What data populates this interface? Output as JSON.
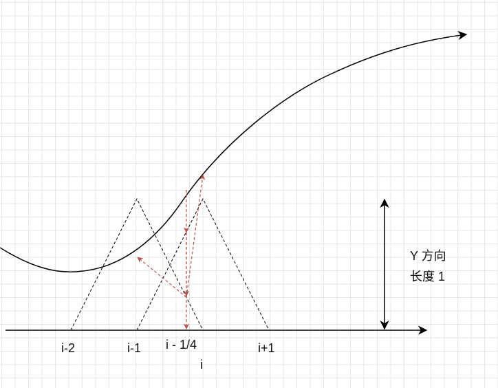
{
  "labels": {
    "i_minus_2": "i-2",
    "i_minus_1": "i-1",
    "i_minus_quarter": "i - 1/4",
    "i": "i",
    "i_plus_1": "i+1",
    "y_direction_line1": "Y 方向",
    "y_direction_line2": "长度 1"
  },
  "colors": {
    "curve": "#000000",
    "axis": "#000000",
    "triangles": "#000000",
    "sample_arrows": "#b85450",
    "grid": "#e6e6e6"
  }
}
